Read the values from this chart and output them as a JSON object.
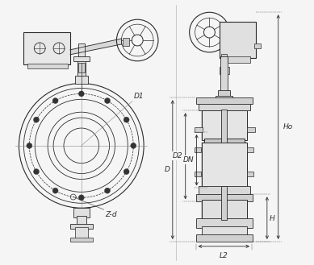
{
  "bg_color": "#f5f5f5",
  "line_color": "#2a2a2a",
  "labels": {
    "D1": "D1",
    "D2": "D2",
    "DN": "DN",
    "D": "D",
    "H": "H",
    "Ho": "Ho",
    "L2": "L2",
    "Zd": "Z-d"
  },
  "fig_width": 3.89,
  "fig_height": 3.29,
  "dpi": 100
}
